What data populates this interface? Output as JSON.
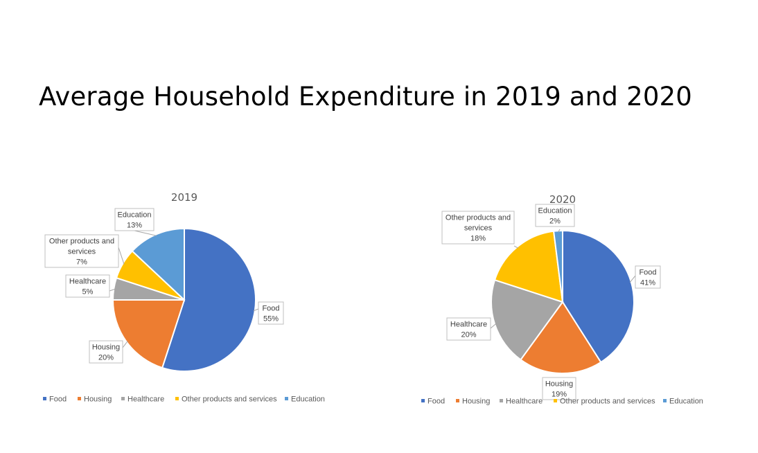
{
  "title": "Average Household Expenditure in 2019 and 2020",
  "chart_data": [
    {
      "type": "pie",
      "title": "2019",
      "categories": [
        "Food",
        "Housing",
        "Healthcare",
        "Other products and services",
        "Education"
      ],
      "values": [
        55,
        20,
        5,
        7,
        13
      ],
      "unit": "%",
      "colors": [
        "#4472C4",
        "#ED7D31",
        "#A5A5A5",
        "#FFC000",
        "#5B9BD5"
      ],
      "data_labels": [
        {
          "lines": [
            "Food",
            "55%"
          ]
        },
        {
          "lines": [
            "Housing",
            "20%"
          ]
        },
        {
          "lines": [
            "Healthcare",
            "5%"
          ]
        },
        {
          "lines": [
            "Other products and",
            "services",
            "7%"
          ]
        },
        {
          "lines": [
            "Education",
            "13%"
          ]
        }
      ],
      "legend": [
        "Food",
        "Housing",
        "Healthcare",
        "Other products and services",
        "Education"
      ],
      "legend_position": "bottom"
    },
    {
      "type": "pie",
      "title": "2020",
      "categories": [
        "Food",
        "Housing",
        "Healthcare",
        "Other products and services",
        "Education"
      ],
      "values": [
        41,
        19,
        20,
        18,
        2
      ],
      "unit": "%",
      "colors": [
        "#4472C4",
        "#ED7D31",
        "#A5A5A5",
        "#FFC000",
        "#5B9BD5"
      ],
      "data_labels": [
        {
          "lines": [
            "Food",
            "41%"
          ]
        },
        {
          "lines": [
            "Housing",
            "19%"
          ]
        },
        {
          "lines": [
            "Healthcare",
            "20%"
          ]
        },
        {
          "lines": [
            "Other products and",
            "services",
            "18%"
          ]
        },
        {
          "lines": [
            "Education",
            "2%"
          ]
        }
      ],
      "legend": [
        "Food",
        "Housing",
        "Healthcare",
        "Other products and services",
        "Education"
      ],
      "legend_position": "bottom"
    }
  ]
}
